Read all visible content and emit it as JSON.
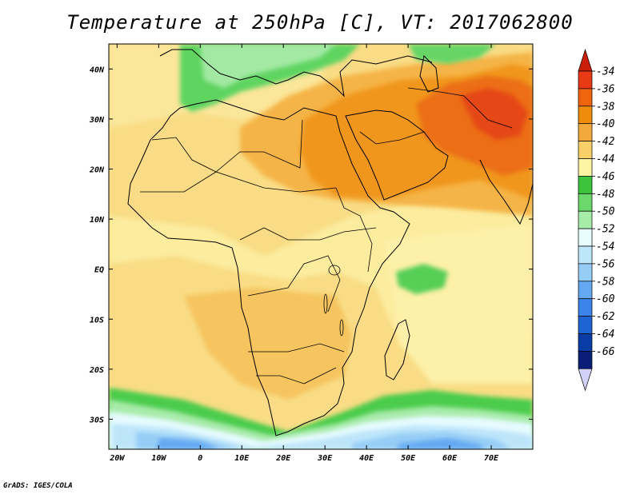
{
  "title": "Temperature at 250hPa [C], VT: 2017062800",
  "credit": "GrADS: IGES/COLA",
  "map": {
    "lon_range": [
      -22,
      80
    ],
    "lat_range": [
      -36,
      45
    ],
    "x_ticks": [
      "20W",
      "10W",
      "0",
      "10E",
      "20E",
      "30E",
      "40E",
      "50E",
      "60E",
      "70E"
    ],
    "x_tick_values": [
      -20,
      -10,
      0,
      10,
      20,
      30,
      40,
      50,
      60,
      70
    ],
    "y_ticks": [
      "40N",
      "30N",
      "20N",
      "10N",
      "EQ",
      "10S",
      "20S",
      "30S"
    ],
    "y_tick_values": [
      40,
      30,
      20,
      10,
      0,
      -10,
      -20,
      -30
    ]
  },
  "colorbar": {
    "labels": [
      "-34",
      "-36",
      "-38",
      "-40",
      "-42",
      "-44",
      "-46",
      "-48",
      "-50",
      "-52",
      "-54",
      "-56",
      "-58",
      "-60",
      "-62",
      "-64",
      "-66"
    ],
    "colors": [
      "#e83a14",
      "#f06410",
      "#f08c0c",
      "#f3aa3c",
      "#f8cf68",
      "#fcf4a0",
      "#3cc43c",
      "#6ad86a",
      "#a8ecaa",
      "#e8fcfe",
      "#bee6fa",
      "#96cdf6",
      "#64a8f2",
      "#3c84ea",
      "#1e64d2",
      "#0a3ca6",
      "#0a1e78"
    ],
    "top_arrow_color": "#c81e0a",
    "bottom_arrow_color": "#d2d2f8"
  }
}
